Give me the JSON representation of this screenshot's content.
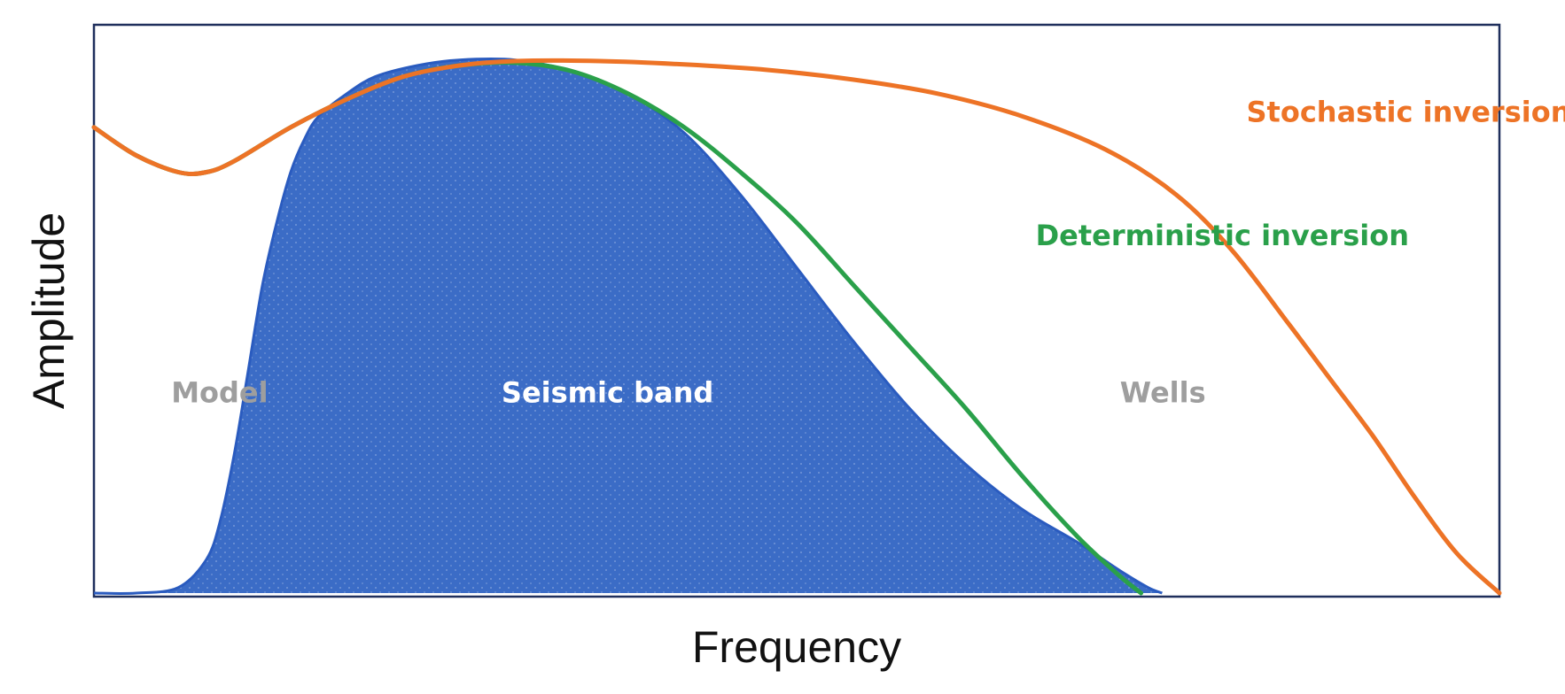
{
  "chart_data": {
    "type": "area",
    "xlabel": "Frequency",
    "ylabel": "Amplitude",
    "xlim": [
      0,
      100
    ],
    "ylim": [
      0,
      100
    ],
    "grid": false,
    "legend": "none",
    "series": [
      {
        "name": "Seismic band",
        "kind": "filled-area",
        "color": "#3b6cc6",
        "points": [
          [
            0,
            0
          ],
          [
            3,
            0
          ],
          [
            6,
            1
          ],
          [
            8,
            6
          ],
          [
            9,
            13
          ],
          [
            10,
            25
          ],
          [
            11,
            40
          ],
          [
            12,
            55
          ],
          [
            13,
            66
          ],
          [
            14,
            75
          ],
          [
            15,
            81
          ],
          [
            16,
            85
          ],
          [
            18,
            89
          ],
          [
            20,
            92
          ],
          [
            23,
            94
          ],
          [
            26,
            95
          ],
          [
            30,
            95
          ],
          [
            34,
            93
          ],
          [
            38,
            89
          ],
          [
            42,
            82
          ],
          [
            46,
            71
          ],
          [
            50,
            58
          ],
          [
            54,
            45
          ],
          [
            58,
            33
          ],
          [
            62,
            23
          ],
          [
            66,
            15
          ],
          [
            70,
            9
          ],
          [
            73,
            4
          ],
          [
            75,
            1
          ],
          [
            76,
            0
          ]
        ]
      },
      {
        "name": "Deterministic inversion",
        "kind": "line",
        "color": "#2aa04a",
        "points": [
          [
            0,
            83
          ],
          [
            3,
            78
          ],
          [
            6,
            75
          ],
          [
            8,
            75
          ],
          [
            10,
            77
          ],
          [
            14,
            83
          ],
          [
            18,
            88
          ],
          [
            22,
            92
          ],
          [
            26,
            94
          ],
          [
            30,
            94.5
          ],
          [
            34,
            93
          ],
          [
            38,
            89
          ],
          [
            42,
            83
          ],
          [
            46,
            75
          ],
          [
            50,
            66
          ],
          [
            54,
            55
          ],
          [
            58,
            44
          ],
          [
            62,
            33
          ],
          [
            66,
            21
          ],
          [
            70,
            10
          ],
          [
            73,
            3
          ],
          [
            74.5,
            0
          ]
        ]
      },
      {
        "name": "Stochastic inversion",
        "kind": "line",
        "color": "#ed7326",
        "points": [
          [
            0,
            83
          ],
          [
            3,
            78
          ],
          [
            6,
            75
          ],
          [
            8,
            75
          ],
          [
            10,
            77
          ],
          [
            14,
            83
          ],
          [
            18,
            88
          ],
          [
            22,
            92
          ],
          [
            26,
            94
          ],
          [
            30,
            94.8
          ],
          [
            36,
            94.8
          ],
          [
            42,
            94.2
          ],
          [
            48,
            93.2
          ],
          [
            54,
            91.5
          ],
          [
            60,
            89
          ],
          [
            66,
            85
          ],
          [
            72,
            79
          ],
          [
            77,
            71
          ],
          [
            81,
            61
          ],
          [
            85,
            48
          ],
          [
            88,
            38
          ],
          [
            91,
            28
          ],
          [
            94,
            17
          ],
          [
            97,
            7
          ],
          [
            100,
            0
          ]
        ]
      }
    ],
    "annotations": [
      {
        "text": "Model",
        "x": 5.5,
        "y": 34,
        "color": "#9e9e9e"
      },
      {
        "text": "Seismic band",
        "x": 29,
        "y": 34,
        "color": "#ffffff"
      },
      {
        "text": "Wells",
        "x": 73,
        "y": 34,
        "color": "#9e9e9e"
      },
      {
        "text": "Deterministic inversion",
        "x": 67,
        "y": 62,
        "color": "#2aa04a"
      },
      {
        "text": "Stochastic inversion",
        "x": 82,
        "y": 84,
        "color": "#ed7326"
      }
    ]
  }
}
